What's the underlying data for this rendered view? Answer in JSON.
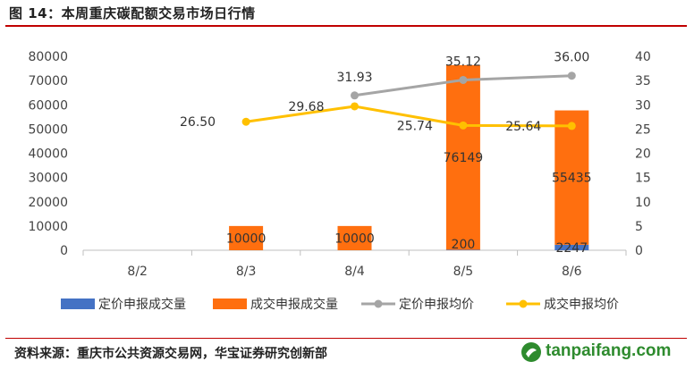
{
  "header": {
    "title": "图 14：本周重庆碳配额交易市场日行情"
  },
  "footer": {
    "source": "资料来源：重庆市公共资源交易网，华宝证券研究创新部",
    "logo_text": "tanpaifang.com"
  },
  "colors": {
    "fixed_volume": "#4472c4",
    "trade_volume": "#ff6f0f",
    "fixed_price": "#a5a5a5",
    "trade_price": "#ffc000",
    "rule": "#c00000",
    "logo": "#2e8b2e"
  },
  "chart_data": {
    "type": "bar",
    "categories": [
      "8/2",
      "8/3",
      "8/4",
      "8/5",
      "8/6"
    ],
    "series": [
      {
        "name": "定价申报成交量",
        "kind": "bar",
        "axis": "left",
        "values": [
          null,
          null,
          null,
          200,
          2247
        ],
        "labels": [
          "",
          "",
          "",
          "200",
          "2247"
        ]
      },
      {
        "name": "成交申报成交量",
        "kind": "bar",
        "axis": "left",
        "values": [
          null,
          10000,
          10000,
          76149,
          55435
        ],
        "labels": [
          "",
          "10000",
          "10000",
          "76149",
          "55435"
        ]
      },
      {
        "name": "定价申报均价",
        "kind": "line",
        "axis": "right",
        "values": [
          null,
          null,
          31.93,
          35.12,
          36.0
        ],
        "labels": [
          "",
          "",
          "31.93",
          "35.12",
          "36.00"
        ]
      },
      {
        "name": "成交申报均价",
        "kind": "line",
        "axis": "right",
        "values": [
          null,
          26.5,
          29.68,
          25.74,
          25.64
        ],
        "labels": [
          "",
          "26.50",
          "29.68",
          "25.74",
          "25.64"
        ]
      }
    ],
    "ylim": [
      0,
      80000
    ],
    "y2lim": [
      0,
      40
    ],
    "yticks": [
      "0",
      "10000",
      "20000",
      "30000",
      "40000",
      "50000",
      "60000",
      "70000",
      "80000"
    ],
    "y2ticks": [
      "0",
      "5",
      "10",
      "15",
      "20",
      "25",
      "30",
      "35",
      "40"
    ],
    "grid": false,
    "legend_position": "bottom"
  }
}
